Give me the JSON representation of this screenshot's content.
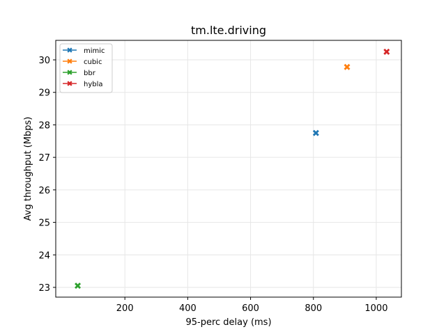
{
  "chart_data": {
    "type": "scatter",
    "title": "tm.lte.driving",
    "xlabel": "95-perc delay (ms)",
    "ylabel": "Avg throughput (Mbps)",
    "xlim": [
      -20,
      1080
    ],
    "ylim": [
      22.7,
      30.6
    ],
    "xticks": [
      200,
      400,
      600,
      800,
      1000
    ],
    "yticks": [
      23,
      24,
      25,
      26,
      27,
      28,
      29,
      30
    ],
    "grid": true,
    "legend_position": "top-left",
    "marker": "X",
    "series": [
      {
        "name": "mimic",
        "color": "#1f77b4",
        "x": [
          808
        ],
        "y": [
          27.75
        ]
      },
      {
        "name": "cubic",
        "color": "#ff7f0e",
        "x": [
          907
        ],
        "y": [
          29.78
        ]
      },
      {
        "name": "bbr",
        "color": "#2ca02c",
        "x": [
          50
        ],
        "y": [
          23.05
        ]
      },
      {
        "name": "hybla",
        "color": "#d62728",
        "x": [
          1033
        ],
        "y": [
          30.25
        ]
      }
    ]
  }
}
